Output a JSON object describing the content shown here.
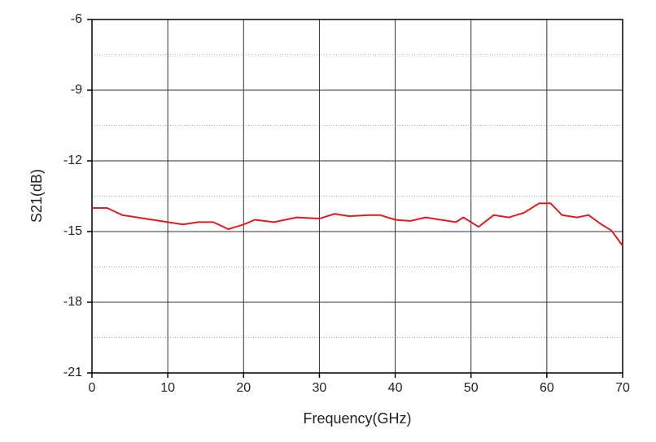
{
  "chart_data": {
    "type": "line",
    "x_label": "Frequency(GHz)",
    "y_label": "S21(dB)",
    "xlim": [
      0,
      70
    ],
    "xticks": [
      0,
      10,
      20,
      30,
      40,
      50,
      60,
      70
    ],
    "ylim": [
      -21,
      -6
    ],
    "yticks": [
      -21,
      -18,
      -15,
      -12,
      -9,
      -6
    ],
    "minor_yticks": [
      -19.5,
      -16.5,
      -13.5,
      -10.5,
      -7.5
    ],
    "grid": true,
    "series": [
      {
        "name": "S21",
        "color": "#e41a1c",
        "x": [
          0,
          2,
          4,
          6,
          8,
          10,
          12,
          14,
          16,
          18,
          20,
          21.5,
          24,
          27,
          30,
          32,
          34,
          36.5,
          38,
          40,
          42,
          44,
          46,
          48,
          49,
          51,
          53,
          55,
          57,
          59,
          60.5,
          62,
          64,
          65.5,
          67,
          68.5,
          70
        ],
        "values": [
          -14.0,
          -14.0,
          -14.3,
          -14.4,
          -14.5,
          -14.6,
          -14.7,
          -14.6,
          -14.6,
          -14.9,
          -14.7,
          -14.5,
          -14.6,
          -14.4,
          -14.45,
          -14.25,
          -14.35,
          -14.3,
          -14.3,
          -14.5,
          -14.55,
          -14.4,
          -14.5,
          -14.6,
          -14.4,
          -14.8,
          -14.3,
          -14.4,
          -14.2,
          -13.8,
          -13.8,
          -14.3,
          -14.4,
          -14.3,
          -14.65,
          -14.95,
          -15.6
        ]
      }
    ]
  }
}
